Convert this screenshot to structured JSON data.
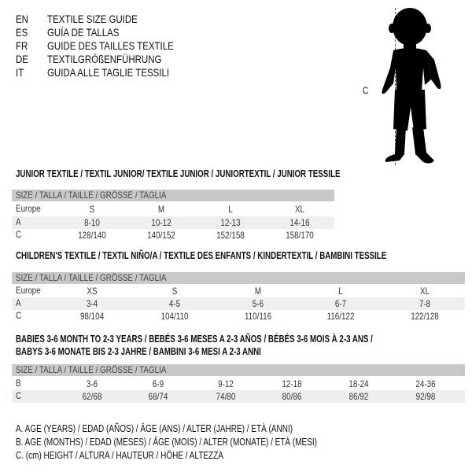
{
  "languages": [
    {
      "code": "EN",
      "title": "TEXTILE SIZE GUIDE"
    },
    {
      "code": "ES",
      "title": "GUÍA DE TALLAS"
    },
    {
      "code": "FR",
      "title": "GUIDE DES TAILLES TEXTILE"
    },
    {
      "code": "DE",
      "title": "TEXTILGRÖßENFÜHRUNG"
    },
    {
      "code": "IT",
      "title": "GUIDA ALLE TAGLIE TESSILI"
    }
  ],
  "figure": {
    "measure_label": "C",
    "icon": "baby-silhouette"
  },
  "size_header": "SIZE / TALLA / TAILLE / GRÖSSE / TAGLIA",
  "tables": [
    {
      "title": "JUNIOR TEXTILE / TEXTIL JUNIOR/ TEXTILE JUNIOR / JUNIORTEXTIL / JUNIOR TESSILE",
      "rows": [
        {
          "label": "Europe",
          "values": [
            "S",
            "M",
            "L",
            "XL"
          ]
        },
        {
          "label": "A",
          "values": [
            "8-10",
            "10-12",
            "12-13",
            "14-16"
          ]
        },
        {
          "label": "C",
          "values": [
            "128/140",
            "140/152",
            "152/158",
            "158/170"
          ]
        }
      ]
    },
    {
      "title": "CHILDREN'S TEXTILE / TEXTIL NIÑO/A / TEXTILE DES ENFANTS / KINDERTEXTIL / BAMBINI TESSILE",
      "rows": [
        {
          "label": "Europe",
          "values": [
            "XS",
            "S",
            "M",
            "L",
            "XL"
          ]
        },
        {
          "label": "A",
          "values": [
            "3-4",
            "4-5",
            "5-6",
            "6-7",
            "7-8"
          ]
        },
        {
          "label": "C",
          "values": [
            "98/104",
            "104/110",
            "110/116",
            "116/122",
            "122/128"
          ]
        }
      ]
    },
    {
      "title": "BABIES 3-6 MONTH TO 2-3 YEARS / BEBÉS 3-6 MESES A 2-3 AÑOS / BÉBÉS 3-6 MOIS À 2-3 ANS /",
      "title2": "BABYS 3-6 MONATE BIS 2-3 JAHRE / BAMBINI 3-6 MESI A 2-3 ANNI",
      "rows": [
        {
          "label": "B",
          "values": [
            "3-6",
            "6-9",
            "9-12",
            "12-18",
            "18-24",
            "24-36"
          ]
        },
        {
          "label": "C",
          "values": [
            "62/68",
            "68/74",
            "74/80",
            "80/86",
            "86/92",
            "92/98"
          ]
        }
      ]
    }
  ],
  "legend": [
    "A. AGE (YEARS) / EDAD (AÑOS) / ÂGE (ANS) / ALTER (JAHRE) / ETÀ (ANNI)",
    "B. AGE (MONTHS) / EDAD (MESES) / ÂGE (MOIS) / ALTER (MONATE) / ETÀ (MESI)",
    "C. (cm) HEIGHT / ALTURA / HAUTEUR / HÖHE / ALTEZZA"
  ]
}
